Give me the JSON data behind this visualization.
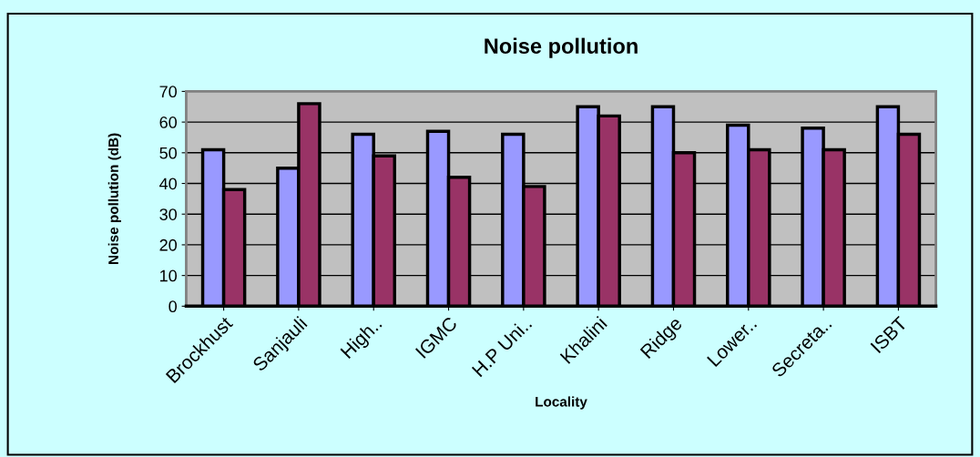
{
  "chart_data": {
    "type": "bar",
    "title": "Noise pollution",
    "xlabel": "Locality",
    "ylabel": "Noise pollution (dB)",
    "categories": [
      "Brockhust",
      "Sanjauli",
      "High..",
      "IGMC",
      "H.P Uni..",
      "Khalini",
      "Ridge",
      "Lower..",
      "Secreta..",
      "ISBT"
    ],
    "series": [
      {
        "color": "#9999ff",
        "values": [
          51,
          45,
          56,
          57,
          56,
          65,
          65,
          59,
          58,
          65
        ]
      },
      {
        "color": "#993366",
        "values": [
          38,
          66,
          49,
          42,
          39,
          62,
          50,
          51,
          51,
          56
        ]
      }
    ],
    "ylim": [
      0,
      70
    ],
    "yticks": [
      0,
      10,
      20,
      30,
      40,
      50,
      60,
      70
    ],
    "grid": "y",
    "legend": false
  }
}
